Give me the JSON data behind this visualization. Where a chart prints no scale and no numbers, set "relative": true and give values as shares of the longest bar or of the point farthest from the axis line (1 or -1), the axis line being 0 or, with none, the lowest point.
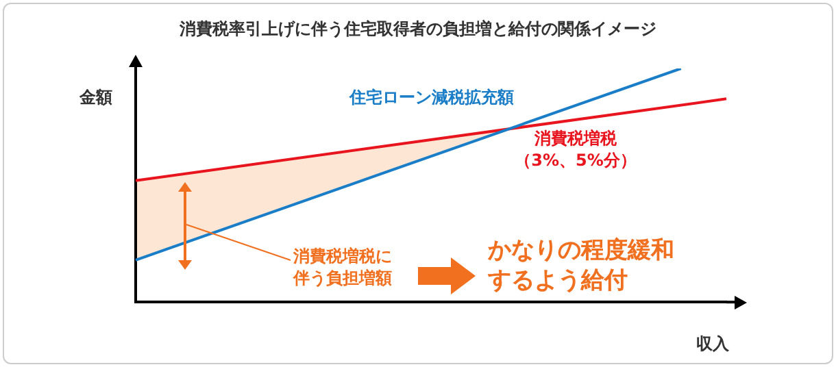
{
  "chart_data": {
    "type": "line",
    "title": "消費税率引上げに伴う住宅取得者の負担増と給付の関係イメージ",
    "xlabel": "収入",
    "ylabel": "金額",
    "relative": true,
    "grid": false,
    "legend": false,
    "marker": "none",
    "line_style": "solid",
    "categories": [
      null,
      null,
      null,
      null,
      null,
      null,
      null,
      null,
      null,
      null,
      null,
      null,
      null,
      null
    ],
    "series": [
      {
        "name": "住宅ローン減税拡充額",
        "color": "#1a7dc7",
        "values": [
          0.18,
          null,
          null,
          null,
          null,
          null,
          null,
          null,
          null,
          null,
          null,
          null,
          1,
          null
        ]
      },
      {
        "name": "消費税増税（3%、5%分）",
        "color": "#e8141e",
        "values": [
          0.52,
          null,
          null,
          null,
          null,
          null,
          null,
          null,
          null,
          null,
          null,
          null,
          null,
          0.87
        ]
      }
    ],
    "annotations": [
      "消費税増税に伴う負担増額",
      "かなりの程度緩和するよう給付"
    ]
  }
}
